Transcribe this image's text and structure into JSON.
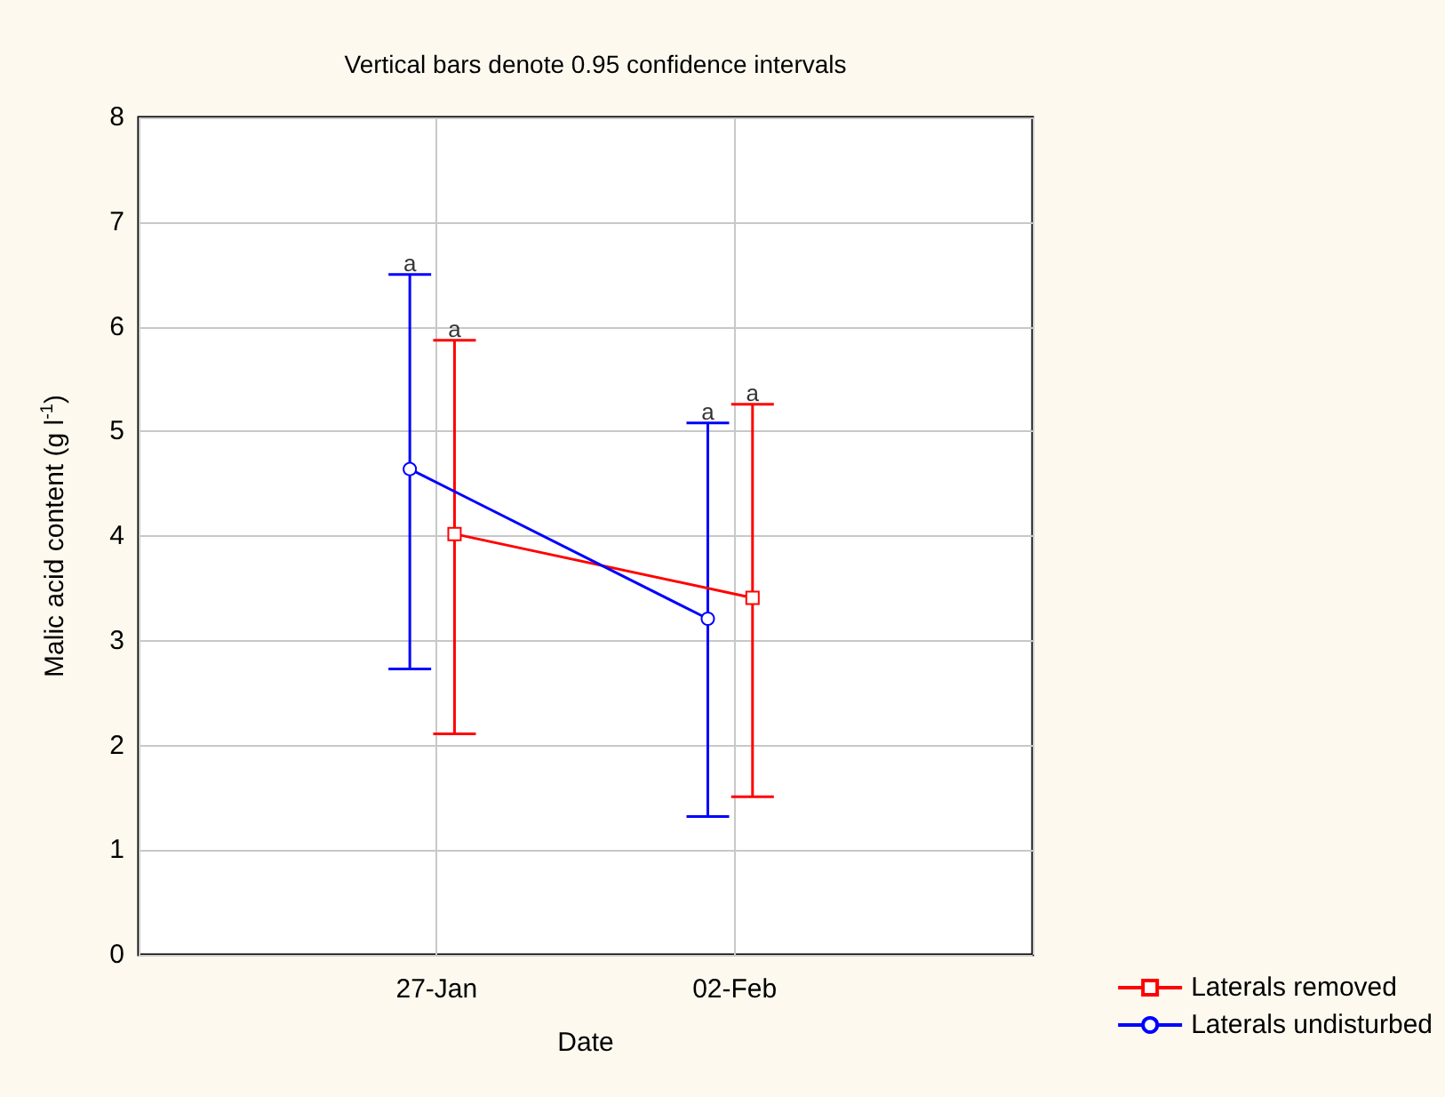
{
  "chart_data": {
    "type": "line",
    "title": "Vertical bars denote 0.95 confidence intervals",
    "xlabel": "Date",
    "ylabel": "Malic acid content (g l$^{-1}$)",
    "categories": [
      null,
      "27-Jan",
      "02-Feb",
      null
    ],
    "series": [
      {
        "name": "Laterals removed",
        "color": "#ff0000",
        "marker": "square",
        "values": [
          null,
          4.02,
          3.41,
          null
        ],
        "errors": [
          null,
          [
            2.11,
            5.87
          ],
          [
            1.51,
            5.26
          ],
          null
        ]
      },
      {
        "name": "Laterals undisturbed",
        "color": "#0000ff",
        "marker": "circle",
        "values": [
          null,
          4.64,
          3.21,
          null
        ],
        "errors": [
          null,
          [
            2.73,
            6.5
          ],
          [
            1.32,
            5.08
          ],
          null
        ]
      }
    ],
    "annotations": [
      {
        "text": "a",
        "x": "27-Jan",
        "y": 6.5
      },
      {
        "text": "a",
        "x": "27-Jan",
        "y": 5.87
      },
      {
        "text": "a",
        "x": "02-Feb",
        "y": 5.08
      },
      {
        "text": "a",
        "x": "02-Feb",
        "y": 5.26
      }
    ],
    "ylim": [
      0,
      8
    ],
    "yticks": [
      0,
      1,
      2,
      3,
      4,
      5,
      6,
      7,
      8
    ],
    "grid": true,
    "legend": "bottom right"
  }
}
